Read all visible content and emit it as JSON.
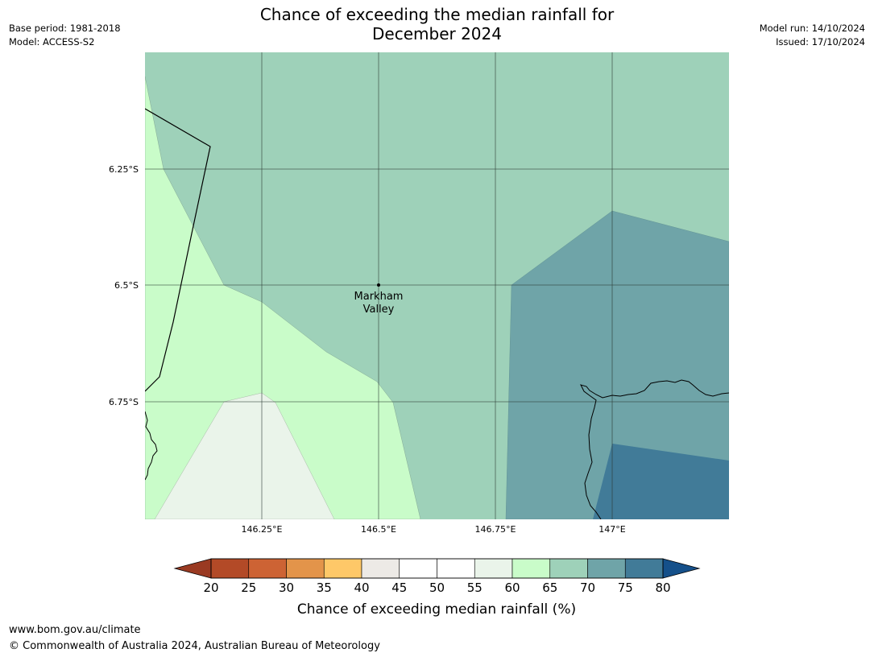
{
  "header": {
    "title_line1": "Chance of exceeding the median rainfall for",
    "title_line2": "December 2024",
    "base_period": "Base period: 1981-2018",
    "model": "Model: ACCESS-S2",
    "model_run": "Model run: 14/10/2024",
    "issued": "Issued: 17/10/2024"
  },
  "map": {
    "place_label_line1": "Markham",
    "place_label_line2": "Valley",
    "lat_labels": [
      "6.25°S",
      "6.5°S",
      "6.75°S"
    ],
    "lon_labels": [
      "146.25°E",
      "146.5°E",
      "146.75°E",
      "147°E"
    ],
    "category_colors": {
      "55-60": "#eaf4ea",
      "60-65": "#c9fcc9",
      "65-70": "#9ed1b9",
      "70-75": "#6fa4a8",
      "75-80": "#417b98"
    }
  },
  "colorbar": {
    "ticks": [
      "20",
      "25",
      "30",
      "35",
      "40",
      "45",
      "50",
      "55",
      "60",
      "65",
      "70",
      "75",
      "80"
    ],
    "colors": [
      "#b34a27",
      "#cd6334",
      "#e3944a",
      "#fec868",
      "#edeae6",
      "#ffffff",
      "#ffffff",
      "#eaf4ea",
      "#c9fcc9",
      "#9ed1b9",
      "#6fa4a8",
      "#417b98"
    ],
    "under_color": "#9a3a22",
    "over_color": "#15508a",
    "label": "Chance of exceeding median rainfall (%)"
  },
  "footer": {
    "url": "www.bom.gov.au/climate",
    "copyright": "© Commonwealth of Australia 2024, Australian Bureau of Meteorology"
  }
}
